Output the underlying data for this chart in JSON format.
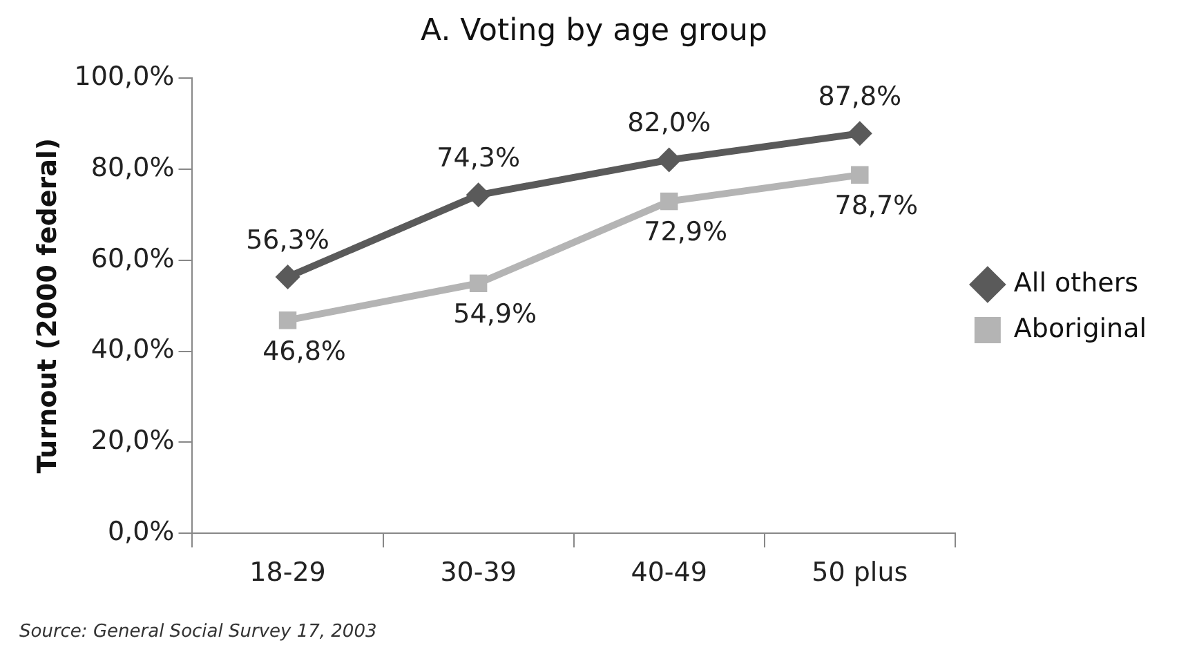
{
  "chart_data": {
    "type": "line",
    "title": "A. Voting by age group",
    "ylabel": "Turnout (2000 federal)",
    "categories": [
      "18-29",
      "30-39",
      "40-49",
      "50 plus"
    ],
    "series": [
      {
        "name": "All others",
        "color": "#5a5a5a",
        "marker": "diamond",
        "values": [
          56.3,
          74.3,
          82.0,
          87.8
        ],
        "value_labels": [
          "56,3%",
          "74,3%",
          "82,0%",
          "87,8%"
        ]
      },
      {
        "name": "Aboriginal",
        "color": "#b4b4b4",
        "marker": "square",
        "values": [
          46.8,
          54.9,
          72.9,
          78.7
        ],
        "value_labels": [
          "46,8%",
          "54,9%",
          "72,9%",
          "78,7%"
        ]
      }
    ],
    "ylim": [
      0,
      100
    ],
    "yticks": [
      {
        "value": 0,
        "label": "0,0%"
      },
      {
        "value": 20,
        "label": "20,0%"
      },
      {
        "value": 40,
        "label": "40,0%"
      },
      {
        "value": 60,
        "label": "60,0%"
      },
      {
        "value": 80,
        "label": "80,0%"
      },
      {
        "value": 100,
        "label": "100,0%"
      }
    ],
    "grid": false,
    "legend": "right",
    "annotations": [
      "Source: General Social Survey 17, 2003"
    ]
  }
}
